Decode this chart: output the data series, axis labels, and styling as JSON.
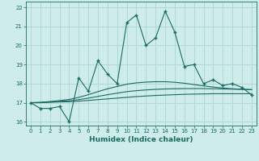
{
  "xlabel": "Humidex (Indice chaleur)",
  "ylabel": "",
  "background_color": "#cdecea",
  "grid_color": "#b0d8d4",
  "line_color": "#1a6b61",
  "xlim": [
    -0.5,
    23.5
  ],
  "ylim": [
    15.8,
    22.3
  ],
  "yticks": [
    16,
    17,
    18,
    19,
    20,
    21,
    22
  ],
  "xticks": [
    0,
    1,
    2,
    3,
    4,
    5,
    6,
    7,
    8,
    9,
    10,
    11,
    12,
    13,
    14,
    15,
    16,
    17,
    18,
    19,
    20,
    21,
    22,
    23
  ],
  "main_series": [
    17.0,
    16.7,
    16.7,
    16.8,
    16.0,
    18.3,
    17.6,
    19.2,
    18.5,
    18.0,
    21.2,
    21.6,
    20.0,
    20.4,
    21.8,
    20.7,
    18.9,
    19.0,
    18.0,
    18.2,
    17.9,
    18.0,
    17.8,
    17.4
  ],
  "trend1": [
    17.0,
    17.0,
    17.02,
    17.04,
    17.05,
    17.08,
    17.12,
    17.16,
    17.2,
    17.24,
    17.28,
    17.32,
    17.35,
    17.38,
    17.4,
    17.42,
    17.44,
    17.45,
    17.46,
    17.47,
    17.47,
    17.47,
    17.47,
    17.47
  ],
  "trend2": [
    17.0,
    17.01,
    17.04,
    17.07,
    17.1,
    17.16,
    17.24,
    17.33,
    17.42,
    17.5,
    17.58,
    17.63,
    17.67,
    17.7,
    17.72,
    17.73,
    17.74,
    17.74,
    17.74,
    17.73,
    17.72,
    17.71,
    17.7,
    17.69
  ],
  "trend3": [
    17.0,
    17.02,
    17.06,
    17.11,
    17.17,
    17.28,
    17.42,
    17.58,
    17.73,
    17.85,
    17.97,
    18.04,
    18.08,
    18.1,
    18.1,
    18.07,
    18.02,
    17.95,
    17.88,
    17.82,
    17.77,
    17.73,
    17.7,
    17.68
  ]
}
